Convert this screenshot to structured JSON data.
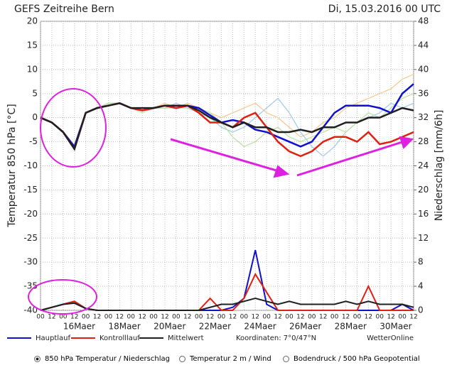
{
  "chart_data": {
    "type": "line",
    "title": "GEFS Zeitreihe Bern",
    "date": "Di, 15.03.2016 00 UTC",
    "ylabel": "Temperatur 850 hPa [°C]",
    "y2label": "Niederschlag [mm/6h]",
    "coordinates": "Koordinaten: 7°0/47°N",
    "source": "WetterOnline",
    "xlim": [
      0,
      396
    ],
    "ylim": [
      -40,
      20
    ],
    "yticks": [
      -40,
      -35,
      -30,
      -25,
      -20,
      -15,
      -10,
      -5,
      0,
      5,
      10,
      15,
      20
    ],
    "y2lim": [
      0,
      48
    ],
    "y2ticks": [
      0,
      4,
      8,
      12,
      16,
      20,
      24,
      28,
      32,
      36,
      40,
      44,
      48
    ],
    "grid": true,
    "xticks": [
      {
        "value": 0,
        "label": "00"
      },
      {
        "value": 12,
        "label": "12"
      },
      {
        "value": 24,
        "label": "00"
      },
      {
        "value": 36,
        "label": "12"
      },
      {
        "value": 48,
        "label": "00"
      },
      {
        "value": 60,
        "label": "12"
      },
      {
        "value": 72,
        "label": "00"
      },
      {
        "value": 84,
        "label": "12"
      },
      {
        "value": 96,
        "label": "00"
      },
      {
        "value": 108,
        "label": "12"
      },
      {
        "value": 120,
        "label": "00"
      },
      {
        "value": 132,
        "label": "12"
      },
      {
        "value": 144,
        "label": "00"
      },
      {
        "value": 156,
        "label": "12"
      },
      {
        "value": 168,
        "label": "00"
      },
      {
        "value": 180,
        "label": "12"
      },
      {
        "value": 192,
        "label": "00"
      },
      {
        "value": 204,
        "label": "12"
      },
      {
        "value": 216,
        "label": "00"
      },
      {
        "value": 228,
        "label": "12"
      },
      {
        "value": 240,
        "label": "00"
      },
      {
        "value": 252,
        "label": "12"
      },
      {
        "value": 264,
        "label": "00"
      },
      {
        "value": 276,
        "label": "12"
      },
      {
        "value": 288,
        "label": "00"
      },
      {
        "value": 300,
        "label": "12"
      },
      {
        "value": 312,
        "label": "00"
      },
      {
        "value": 324,
        "label": "12"
      },
      {
        "value": 336,
        "label": "00"
      },
      {
        "value": 348,
        "label": "12"
      },
      {
        "value": 360,
        "label": "00"
      },
      {
        "value": 372,
        "label": "12"
      },
      {
        "value": 384,
        "label": "00"
      },
      {
        "value": 396,
        "label": "12"
      }
    ],
    "date_labels": [
      {
        "value": 24,
        "label": "16Maer"
      },
      {
        "value": 72,
        "label": "18Maer"
      },
      {
        "value": 120,
        "label": "20Maer"
      },
      {
        "value": 168,
        "label": "22Maer"
      },
      {
        "value": 216,
        "label": "24Maer"
      },
      {
        "value": 264,
        "label": "26Maer"
      },
      {
        "value": 312,
        "label": "28Maer"
      },
      {
        "value": 360,
        "label": "30Maer"
      }
    ],
    "x": [
      0,
      12,
      24,
      36,
      48,
      60,
      72,
      84,
      96,
      108,
      120,
      132,
      144,
      156,
      168,
      180,
      192,
      204,
      216,
      228,
      240,
      252,
      264,
      276,
      288,
      300,
      312,
      324,
      336,
      348,
      360,
      372,
      384,
      396
    ],
    "ensemble": [
      {
        "color": "#f5c88a",
        "values": [
          0,
          -1,
          -3,
          -6,
          1,
          2,
          3,
          3,
          2,
          2,
          2,
          3,
          2,
          3,
          2,
          1,
          0,
          1,
          2,
          3,
          1,
          0,
          -2,
          -4,
          -3,
          -1,
          0,
          2,
          3,
          4,
          5,
          6,
          8,
          9
        ]
      },
      {
        "color": "#9ec8f0",
        "values": [
          0,
          -1,
          -3,
          -6,
          1,
          2,
          3,
          3,
          2,
          2,
          2,
          2,
          3,
          2,
          1,
          0,
          -2,
          -3,
          -2,
          0,
          2,
          4,
          1,
          -3,
          -6,
          -8,
          -6,
          -3,
          -1,
          0,
          1,
          3,
          2,
          3
        ]
      },
      {
        "color": "#b9e3a0",
        "values": [
          0,
          -1,
          -3,
          -6,
          1,
          2,
          3,
          3,
          2,
          1,
          2,
          2,
          2,
          2,
          2,
          1,
          -1,
          -4,
          -6,
          -5,
          -3,
          -2,
          -4,
          -5,
          -4,
          -3,
          -2,
          -3,
          -1,
          1,
          0,
          2,
          4,
          5
        ]
      }
    ],
    "series": [
      {
        "name": "Hauptlauf",
        "color": "#1010d0",
        "values": [
          0,
          -1,
          -3,
          -6,
          1,
          2,
          2.5,
          3,
          2,
          1.5,
          2,
          2.5,
          2,
          2.5,
          2,
          0.5,
          -1,
          -0.5,
          -1,
          -2.5,
          -3,
          -4,
          -5,
          -6,
          -5,
          -2,
          1,
          2.5,
          2.5,
          2.5,
          2,
          1,
          5,
          7
        ],
        "precip": [
          0,
          0.5,
          1,
          1.5,
          0.3,
          0,
          0,
          0,
          0,
          0,
          0,
          0,
          0,
          0,
          0,
          0,
          0,
          0.5,
          2,
          10,
          1,
          0,
          0,
          0,
          0,
          0,
          0,
          0,
          0,
          0,
          0,
          0,
          1,
          0
        ]
      },
      {
        "name": "Kontrolllauf",
        "color": "#e02010",
        "values": [
          0,
          -1,
          -3,
          -6.5,
          1,
          2,
          2.5,
          3,
          2,
          1.5,
          2,
          2.5,
          2,
          2.5,
          1,
          -1,
          -1,
          -2,
          0,
          1,
          -2,
          -5,
          -7,
          -8,
          -7,
          -5,
          -4,
          -4,
          -5,
          -3,
          -5.5,
          -5,
          -4,
          -3
        ],
        "precip": [
          0,
          0.5,
          1,
          1.5,
          0.3,
          0,
          0,
          0,
          0,
          0,
          0,
          0,
          0,
          0,
          0,
          2,
          0,
          0,
          2,
          6,
          3,
          0,
          0,
          0,
          0,
          0,
          0,
          0,
          0,
          4,
          0,
          0,
          0,
          0
        ]
      },
      {
        "name": "Mittelwert",
        "color": "#202020",
        "values": [
          0,
          -1,
          -3,
          -6.5,
          1,
          2,
          2.5,
          3,
          2,
          2,
          2,
          2.5,
          2.5,
          2.5,
          1.5,
          0,
          -1,
          -2,
          -1,
          -2,
          -2,
          -3,
          -3,
          -2.5,
          -3,
          -2,
          -2,
          -1,
          -1,
          0,
          0,
          1,
          2,
          1.5
        ],
        "precip": [
          0,
          0.5,
          1,
          1.2,
          0.3,
          0,
          0,
          0,
          0,
          0,
          0,
          0,
          0,
          0,
          0,
          0.5,
          1,
          1,
          1.5,
          2,
          1.5,
          1,
          1.5,
          1,
          1,
          1,
          1,
          1.5,
          1,
          1.5,
          1,
          1,
          1,
          0.5
        ]
      }
    ]
  },
  "options": [
    "850 hPa Temperatur / Niederschlag",
    "Temperatur 2 m / Wind",
    "Bodendruck / 500 hPa Geopotential"
  ]
}
